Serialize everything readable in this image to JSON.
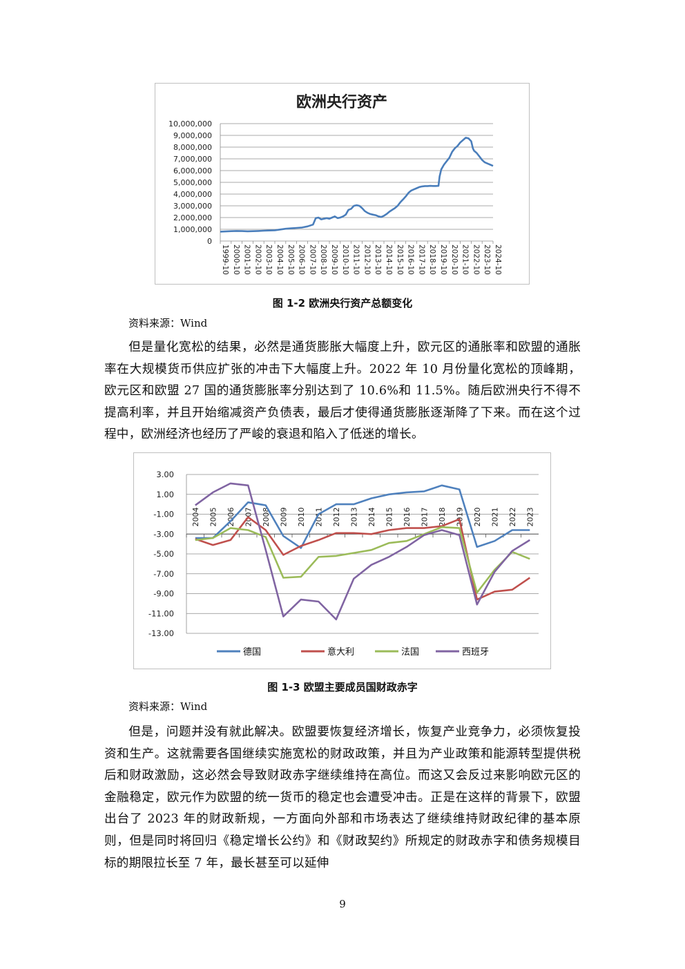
{
  "figure1": {
    "caption": "图 1-2  欧洲央行资产总额变化",
    "source": "资料来源：Wind",
    "chart_data": {
      "type": "line",
      "title": "欧洲央行资产",
      "xlabel": "",
      "ylabel": "",
      "ylim": [
        0,
        10000000
      ],
      "yticks": [
        "10,000,000",
        "9,000,000",
        "8,000,000",
        "7,000,000",
        "6,000,000",
        "5,000,000",
        "4,000,000",
        "3,000,000",
        "2,000,000",
        "1,000,000",
        "0"
      ],
      "xticks": [
        "1999-10",
        "2000-10",
        "2001-10",
        "2002-10",
        "2003-10",
        "2004-10",
        "2005-10",
        "2006-10",
        "2007-10",
        "2008-10",
        "2009-10",
        "2010-10",
        "2011-10",
        "2012-10",
        "2013-10",
        "2014-10",
        "2015-10",
        "2016-10",
        "2017-10",
        "2018-10",
        "2019-10",
        "2020-10",
        "2021-10",
        "2022-10",
        "2023-10",
        "2024-10"
      ],
      "color": "#4a7ebb",
      "series": [
        {
          "x": [
            1999.75,
            2000.25,
            2000.75,
            2001.25,
            2001.75,
            2002.25,
            2002.75,
            2003.25,
            2003.75,
            2004.25,
            2004.75,
            2005.25,
            2005.75,
            2006.25,
            2006.75,
            2007.25,
            2007.75,
            2008.25,
            2008.5,
            2008.75,
            2009.0,
            2009.25,
            2009.5,
            2009.75,
            2010.0,
            2010.25,
            2010.5,
            2010.75,
            2011.0,
            2011.25,
            2011.5,
            2011.75,
            2012.0,
            2012.25,
            2012.5,
            2012.75,
            2013.0,
            2013.25,
            2013.5,
            2013.75,
            2014.0,
            2014.25,
            2014.5,
            2014.75,
            2015.0,
            2015.25,
            2015.5,
            2015.75,
            2016.0,
            2016.25,
            2016.5,
            2016.75,
            2017.0,
            2017.25,
            2017.5,
            2017.75,
            2018.0,
            2018.25,
            2018.5,
            2018.75,
            2019.0,
            2019.25,
            2019.5,
            2019.75,
            2019.85,
            2020.0,
            2020.25,
            2020.5,
            2020.75,
            2021.0,
            2021.25,
            2021.5,
            2021.75,
            2022.0,
            2022.25,
            2022.5,
            2022.75,
            2022.9,
            2023.0,
            2023.25,
            2023.5,
            2023.75,
            2024.0,
            2024.25,
            2024.5,
            2024.75
          ],
          "y": [
            800000,
            820000,
            840000,
            860000,
            850000,
            830000,
            840000,
            860000,
            880000,
            900000,
            920000,
            980000,
            1050000,
            1080000,
            1120000,
            1150000,
            1250000,
            1400000,
            1950000,
            2000000,
            1850000,
            1900000,
            1950000,
            1900000,
            2000000,
            2100000,
            1950000,
            2000000,
            2100000,
            2250000,
            2650000,
            2750000,
            3000000,
            3050000,
            3000000,
            2800000,
            2550000,
            2400000,
            2300000,
            2250000,
            2200000,
            2100000,
            2050000,
            2150000,
            2300000,
            2500000,
            2650000,
            2800000,
            3000000,
            3300000,
            3550000,
            3800000,
            4100000,
            4300000,
            4400000,
            4500000,
            4600000,
            4650000,
            4680000,
            4680000,
            4700000,
            4690000,
            4690000,
            4700000,
            5500000,
            6100000,
            6500000,
            6800000,
            7100000,
            7600000,
            7900000,
            8100000,
            8400000,
            8600000,
            8800000,
            8750000,
            8500000,
            7900000,
            7700000,
            7500000,
            7200000,
            6900000,
            6700000,
            6600000,
            6500000,
            6400000
          ]
        }
      ]
    }
  },
  "paragraph1": "但是量化宽松的结果，必然是通货膨胀大幅度上升，欧元区的通胀率和欧盟的通胀率在大规模货币供应扩张的冲击下大幅度上升。2022 年 10 月份量化宽松的顶峰期，欧元区和欧盟 27 国的通货膨胀率分别达到了 10.6%和 11.5%。随后欧洲央行不得不提高利率，并且开始缩减资产负债表，最后才使得通货膨胀逐渐降了下来。而在这个过程中，欧洲经济也经历了严峻的衰退和陷入了低迷的增长。",
  "figure2": {
    "caption": "图 1-3  欧盟主要成员国财政赤字",
    "source": "资料来源：Wind",
    "chart_data": {
      "type": "line",
      "title": "",
      "xlabel": "",
      "ylabel": "",
      "ylim": [
        -13,
        3
      ],
      "yticks": [
        "3.00",
        "1.00",
        "-1.00",
        "-3.00",
        "-5.00",
        "-7.00",
        "-9.00",
        "-11.00",
        "-13.00"
      ],
      "categories": [
        "2004",
        "2005",
        "2006",
        "2007",
        "2008",
        "2009",
        "2010",
        "2011",
        "2012",
        "2013",
        "2014",
        "2015",
        "2016",
        "2017",
        "2018",
        "2019",
        "2020",
        "2021",
        "2022",
        "2023"
      ],
      "legend_position": "bottom",
      "series": [
        {
          "name": "德国",
          "color": "#4f81bd",
          "values": [
            -3.4,
            -3.4,
            -1.7,
            0.2,
            -0.1,
            -3.2,
            -4.4,
            -1.0,
            0.0,
            0.0,
            0.6,
            1.0,
            1.2,
            1.3,
            1.9,
            1.5,
            -4.3,
            -3.7,
            -2.6,
            -2.6
          ]
        },
        {
          "name": "意大利",
          "color": "#c0504d",
          "values": [
            -3.5,
            -4.1,
            -3.6,
            -1.3,
            -2.6,
            -5.1,
            -4.2,
            -3.6,
            -2.9,
            -2.9,
            -3.0,
            -2.6,
            -2.4,
            -2.4,
            -2.2,
            -1.5,
            -9.6,
            -8.8,
            -8.6,
            -7.4
          ]
        },
        {
          "name": "法国",
          "color": "#9bbb59",
          "values": [
            -3.6,
            -3.4,
            -2.4,
            -2.6,
            -3.3,
            -7.4,
            -7.3,
            -5.3,
            -5.2,
            -4.9,
            -4.6,
            -3.9,
            -3.7,
            -3.0,
            -2.3,
            -2.4,
            -8.9,
            -6.6,
            -4.8,
            -5.5
          ]
        },
        {
          "name": "西班牙",
          "color": "#8064a2",
          "values": [
            -0.1,
            1.2,
            2.1,
            1.9,
            -4.6,
            -11.3,
            -9.6,
            -9.8,
            -11.6,
            -7.5,
            -6.1,
            -5.3,
            -4.3,
            -3.1,
            -2.6,
            -3.1,
            -10.1,
            -6.8,
            -4.7,
            -3.6
          ]
        }
      ]
    }
  },
  "paragraph2": "但是，问题并没有就此解决。欧盟要恢复经济增长，恢复产业竞争力，必须恢复投资和生产。这就需要各国继续实施宽松的财政政策，并且为产业政策和能源转型提供税后和财政激励，这必然会导致财政赤字继续维持在高位。而这又会反过来影响欧元区的金融稳定，欧元作为欧盟的统一货币的稳定也会遭受冲击。正是在这样的背景下，欧盟出台了 2023 年的财政新规，一方面向外部和市场表达了继续维持财政纪律的基本原则，但是同时将回归《稳定增长公约》和《财政契约》所规定的财政赤字和债务规模目标的期限拉长至 7 年，最长甚至可以延伸",
  "page_number": "9"
}
